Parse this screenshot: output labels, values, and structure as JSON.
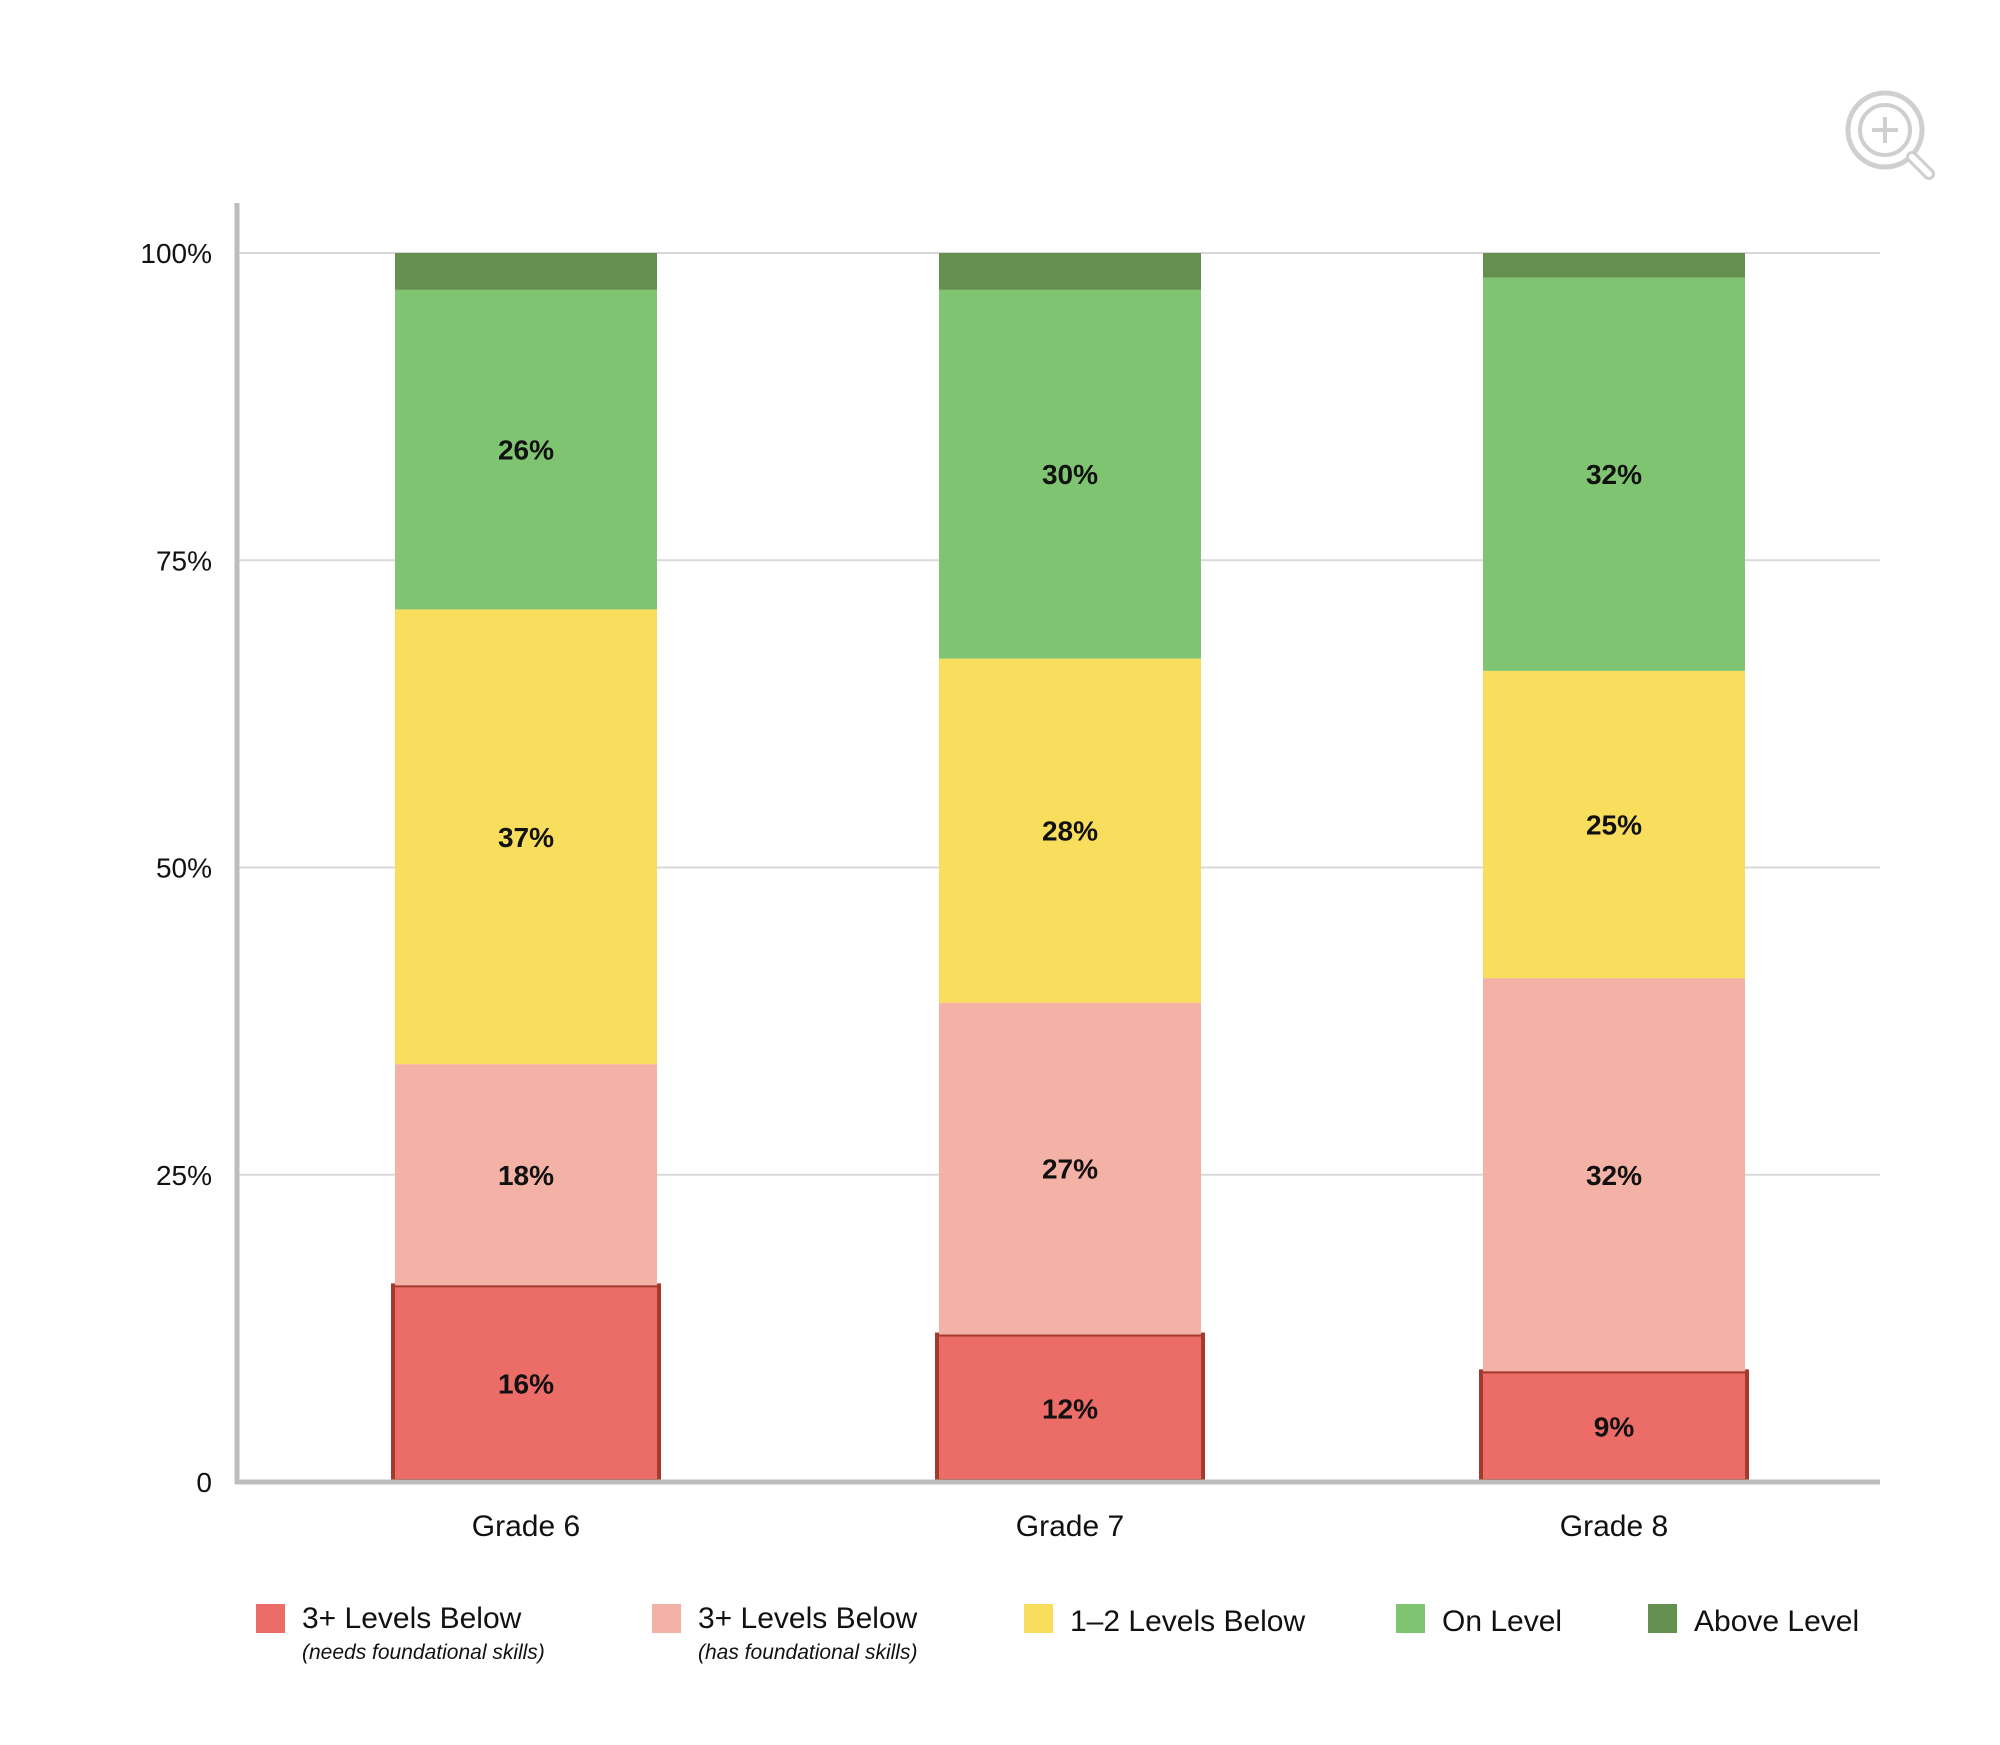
{
  "icons": {
    "zoom": "zoom-in-icon"
  },
  "colors": {
    "needs_foundational": "#EC6D67",
    "has_foundational": "#F4B1A5",
    "one_two_below": "#F9DE5E",
    "on_level": "#7FC571",
    "above_level": "#64904F",
    "highlight_border": "#A23A30",
    "grid": "#d8d8d8",
    "axis": "#bdbdbd"
  },
  "chart_data": {
    "type": "bar",
    "stacked": true,
    "categories": [
      "Grade 6",
      "Grade 7",
      "Grade 8"
    ],
    "yticks": [
      "0",
      "25%",
      "50%",
      "75%",
      "100%"
    ],
    "ylim": [
      0,
      100
    ],
    "grid": true,
    "legend_position": "bottom",
    "series": [
      {
        "name": "3+ Levels Below",
        "subtitle": "(needs foundational skills)",
        "color_key": "needs_foundational",
        "values": [
          16,
          12,
          9
        ],
        "labels": [
          "16%",
          "12%",
          "9%"
        ],
        "highlighted": true
      },
      {
        "name": "3+ Levels Below",
        "subtitle": "(has foundational skills)",
        "color_key": "has_foundational",
        "values": [
          18,
          27,
          32
        ],
        "labels": [
          "18%",
          "27%",
          "32%"
        ]
      },
      {
        "name": "1–2 Levels Below",
        "color_key": "one_two_below",
        "values": [
          37,
          28,
          25
        ],
        "labels": [
          "37%",
          "28%",
          "25%"
        ]
      },
      {
        "name": "On Level",
        "color_key": "on_level",
        "values": [
          26,
          30,
          32
        ],
        "labels": [
          "26%",
          "30%",
          "32%"
        ]
      },
      {
        "name": "Above Level",
        "color_key": "above_level",
        "values": [
          3,
          3,
          2
        ],
        "labels": [
          "",
          "",
          ""
        ]
      }
    ]
  }
}
